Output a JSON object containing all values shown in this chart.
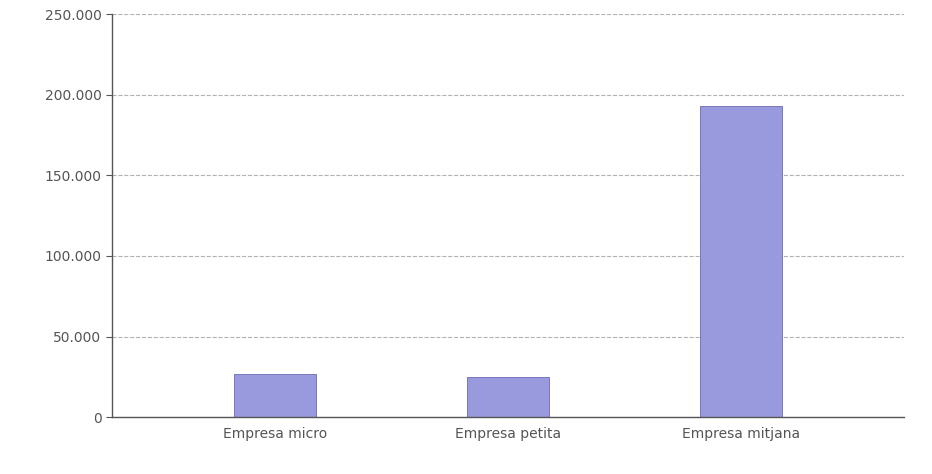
{
  "categories": [
    "Empresa micro",
    "Empresa petita",
    "Empresa mitjana"
  ],
  "values": [
    27000,
    25000,
    193000
  ],
  "bar_color": "#9999dd",
  "bar_edge_color": "#7777bb",
  "ylim": [
    0,
    250000
  ],
  "yticks": [
    0,
    50000,
    100000,
    150000,
    200000,
    250000
  ],
  "ytick_labels": [
    "0",
    "50.000",
    "100.000",
    "150.000",
    "200.000",
    "250.000"
  ],
  "background_color": "#ffffff",
  "grid_color": "#aaaaaa",
  "bar_width": 0.35,
  "figsize": [
    9.32,
    4.74
  ],
  "dpi": 100,
  "spine_color": "#555555",
  "tick_color": "#555555",
  "label_fontsize": 10
}
